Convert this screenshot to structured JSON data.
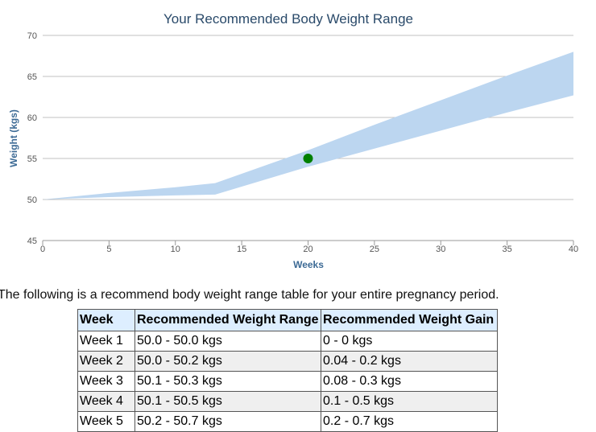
{
  "chart_data": {
    "type": "area",
    "title": "Your Recommended Body Weight Range",
    "xlabel": "Weeks",
    "ylabel": "Weight (kgs)",
    "xlim": [
      0,
      40
    ],
    "ylim": [
      45,
      70
    ],
    "xticks": [
      0,
      5,
      10,
      15,
      20,
      25,
      30,
      35,
      40
    ],
    "yticks": [
      45,
      50,
      55,
      60,
      65,
      70
    ],
    "grid": "horizontal",
    "series": [
      {
        "kind": "range",
        "color": "#bcd6f0",
        "x": [
          0,
          5,
          10,
          13,
          20,
          25,
          30,
          35,
          40
        ],
        "lower": [
          50.0,
          50.3,
          50.5,
          50.6,
          54.0,
          56.2,
          58.4,
          60.6,
          62.7
        ],
        "upper": [
          50.0,
          50.8,
          51.5,
          52.0,
          56.0,
          59.1,
          62.1,
          65.1,
          68.0
        ]
      },
      {
        "kind": "point",
        "color": "#008000",
        "x": [
          20
        ],
        "y": [
          55
        ]
      }
    ]
  },
  "intro_text": "The following is a recommend body weight range table for your entire pregnancy period.",
  "table": {
    "headers": [
      "Week",
      "Recommended Weight Range",
      "Recommended Weight Gain"
    ],
    "rows": [
      [
        "Week 1",
        "50.0 - 50.0 kgs",
        "0 - 0 kgs"
      ],
      [
        "Week 2",
        "50.0 - 50.2 kgs",
        "0.04 - 0.2 kgs"
      ],
      [
        "Week 3",
        "50.1 - 50.3 kgs",
        "0.08 - 0.3 kgs"
      ],
      [
        "Week 4",
        "50.1 - 50.5 kgs",
        "0.1 - 0.5 kgs"
      ],
      [
        "Week 5",
        "50.2 - 50.7 kgs",
        "0.2 - 0.7 kgs"
      ]
    ]
  },
  "colors": {
    "title": "#2a4a6a",
    "axis_label": "#3c6a95",
    "tick_label": "#555555",
    "grid": "#c0c0c0",
    "header_bg": "#ddeeff"
  }
}
